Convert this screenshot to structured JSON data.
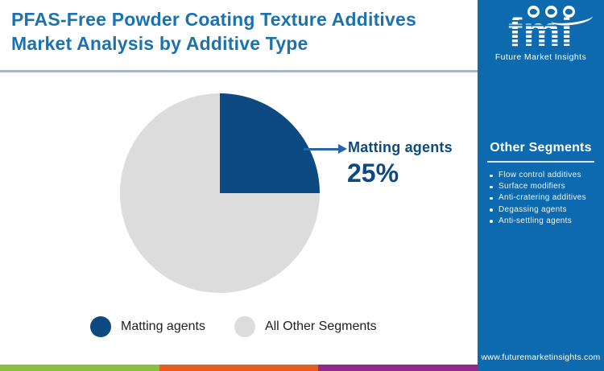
{
  "header": {
    "title": "PFAS-Free Powder Coating Texture Additives Market Analysis by Additive Type"
  },
  "chart_data": {
    "type": "pie",
    "title": "PFAS-Free Powder Coating Texture Additives Market Analysis by Additive Type",
    "categories": [
      "Matting agents",
      "All Other Segments"
    ],
    "values": [
      25,
      75
    ],
    "colors": [
      "#0d4a81",
      "#dcdcdc"
    ],
    "start_angle_deg": 0,
    "legend_position": "bottom",
    "callout": {
      "label": "Matting agents",
      "value": "25%"
    }
  },
  "legend": {
    "items": [
      {
        "label": "Matting agents",
        "color": "#0d4a81"
      },
      {
        "label": "All Other Segments",
        "color": "#dcdcdc"
      }
    ]
  },
  "sidebar": {
    "background": "#0e6aae",
    "logo": {
      "brand": "fmi",
      "tagline": "Future Market Insights",
      "icons": [
        "americas-map-icon",
        "emea-map-icon",
        "apac-map-icon"
      ]
    },
    "other_segments": {
      "heading": "Other Segments",
      "items": [
        "Flow control additives",
        "Surface modifiers",
        "Anti-cratering additives",
        "Degassing agents",
        "Anti-settling agents"
      ]
    },
    "website": "www.futuremarketinsights.com"
  },
  "footer": {
    "bar_colors": [
      "#8abf45",
      "#e65c22",
      "#8f2b8d"
    ]
  }
}
